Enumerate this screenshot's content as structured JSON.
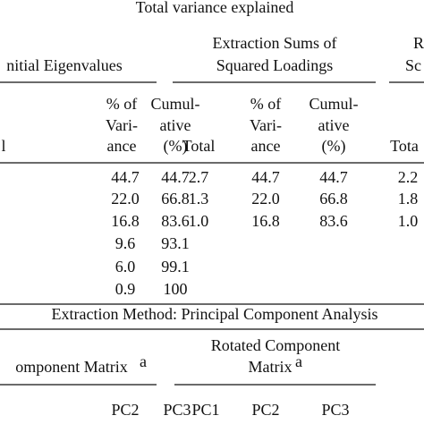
{
  "title": "Total variance explained",
  "groups": {
    "initial": "nitial Eigenvalues",
    "extraction": [
      "Extraction Sums of",
      "Squared Loadings"
    ],
    "rotation": [
      "R",
      "Sc"
    ]
  },
  "columns": {
    "total_cut": "l",
    "initial_pct": [
      "% of",
      "Vari-",
      "ance"
    ],
    "initial_cum": [
      "Cumul-",
      "ative",
      "(%)"
    ],
    "extraction_total": "Total",
    "extraction_pct": [
      "% of",
      "Vari-",
      "ance"
    ],
    "extraction_cum": [
      "Cumul-",
      "ative",
      "(%)"
    ],
    "rotation_total": "Tota"
  },
  "rows": [
    [
      "44.7",
      "44.7",
      "2.7",
      "44.7",
      "44.7",
      "2.2"
    ],
    [
      "22.0",
      "66.8",
      "1.3",
      "22.0",
      "66.8",
      "1.8"
    ],
    [
      "16.8",
      "83.6",
      "1.0",
      "16.8",
      "83.6",
      "1.0"
    ],
    [
      "9.6",
      "93.1",
      null,
      null,
      null,
      null
    ],
    [
      "6.0",
      "99.1",
      null,
      null,
      null,
      null
    ],
    [
      "0.9",
      "100",
      null,
      null,
      null,
      null
    ]
  ],
  "footnote": "Extraction Method: Principal Component Analysis",
  "matrices": {
    "component": {
      "title": "omponent Matrix",
      "sup": "a"
    },
    "rotated": {
      "title": [
        "Rotated Component",
        "Matrix"
      ],
      "sup": "a"
    },
    "component_cols": [
      "PC2",
      "PC3"
    ],
    "rotated_cols": [
      "PC1",
      "PC2",
      "PC3"
    ]
  }
}
